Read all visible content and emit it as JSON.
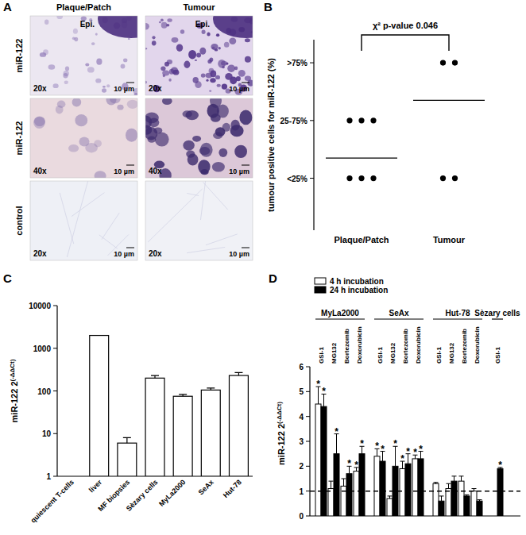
{
  "image_panel": {
    "panel": "A",
    "columns": [
      "Plaque/Patch",
      "Tumour"
    ],
    "rows": [
      {
        "label": "miR-122",
        "magnification": "20x"
      },
      {
        "label": "miR-122",
        "magnification": "40x"
      },
      {
        "label": "control",
        "magnification": "20x"
      }
    ],
    "scale_bar": "10 µm",
    "epithelium_label": "Epi."
  },
  "chart_data": [
    {
      "panel": "B",
      "type": "scatter",
      "annotation": "χ² p-value 0.046",
      "ylabel": "tumour positive cells for miR-122 (%)",
      "categories": [
        "Plaque/Patch",
        "Tumour"
      ],
      "points": [
        [
          1,
          1,
          1,
          0,
          0,
          0
        ],
        [
          2,
          2,
          0,
          0
        ]
      ],
      "means": [
        0.35,
        1.35
      ],
      "color": "#000000",
      "ylim": [
        -0.9,
        2.4
      ],
      "yticks": [
        {
          "value": 0,
          "label": "<25%"
        },
        {
          "value": 1,
          "label": "25-75%"
        },
        {
          "value": 2,
          "label": ">75%"
        }
      ]
    },
    {
      "panel": "C",
      "type": "bar",
      "log": "y",
      "ylabel": {
        "text": "miR-122 2",
        "superscript": "(-ΔΔCt)"
      },
      "categories": [
        "quiescent T-cells",
        "liver",
        "MF biopsies",
        "Sèzary cells",
        "MyLa2000",
        "SeAx",
        "Hut-78"
      ],
      "values": [
        1,
        2000,
        6,
        200,
        75,
        105,
        230
      ],
      "errors": [
        null,
        null,
        2,
        30,
        8,
        12,
        40
      ],
      "color": "#ffffff",
      "ylim": [
        1,
        10000
      ],
      "yticks": [
        1,
        10,
        100,
        1000,
        10000
      ]
    },
    {
      "panel": "D",
      "type": "bar",
      "legend": "top-left",
      "ylabel": {
        "text": "miR-122 2",
        "superscript": "(-ΔΔCt)"
      },
      "groups": [
        {
          "name": "MyLa2000",
          "count": 4
        },
        {
          "name": "SeAx",
          "count": 4
        },
        {
          "name": "Hut-78",
          "count": 4
        },
        {
          "name": "Sèzary cells",
          "count": 1
        }
      ],
      "categories": [
        "GSI-1",
        "MG132",
        "Bortezomib",
        "Doxorubicin",
        "GSI-1",
        "MG132",
        "Bortezomib",
        "Doxorubicin",
        "GSI-1",
        "MG132",
        "Bortezomib",
        "Doxorubicin",
        "GSI-1"
      ],
      "series": [
        {
          "name": "4 h incubation",
          "color": "#ffffff",
          "values": [
            4.5,
            1.1,
            1.2,
            1.8,
            2.4,
            0.7,
            1.9,
            2.3,
            1.3,
            1.1,
            1.4,
            1.0,
            null
          ],
          "errors": [
            0.7,
            0.3,
            0.3,
            0.15,
            0.3,
            0.1,
            0.3,
            0.15,
            0.05,
            0.2,
            0.2,
            0.1,
            null
          ],
          "significance": [
            "*",
            null,
            null,
            "*",
            "*",
            null,
            "*",
            "*",
            null,
            null,
            null,
            null,
            null
          ]
        },
        {
          "name": "24 h incubation",
          "color": "#000000",
          "values": [
            4.4,
            2.5,
            1.7,
            2.5,
            2.2,
            2.0,
            2.1,
            2.3,
            0.6,
            1.4,
            0.8,
            0.6,
            1.9
          ],
          "errors": [
            0.5,
            0.8,
            0.3,
            0.3,
            0.4,
            0.8,
            0.4,
            0.3,
            0.2,
            0.2,
            0.05,
            0.05,
            0.05
          ],
          "significance": [
            "*",
            "*",
            "*",
            "*",
            "*",
            "*",
            "*",
            "*",
            null,
            null,
            null,
            null,
            "*"
          ]
        }
      ],
      "reference_line": 1,
      "ylim": [
        0,
        6
      ],
      "yticks": [
        0,
        1,
        2,
        3,
        4,
        5,
        6
      ]
    }
  ]
}
